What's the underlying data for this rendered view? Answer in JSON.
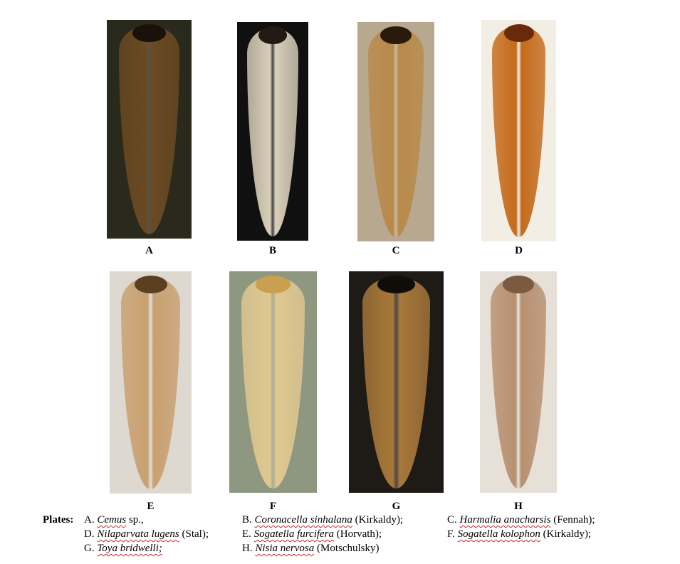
{
  "plates": [
    {
      "letter": "A",
      "bg": "#2a2a1c",
      "body": "#6b4a22",
      "head": "#1a1208"
    },
    {
      "letter": "B",
      "bg": "#101010",
      "body": "#d8cfb8",
      "head": "#241a14"
    },
    {
      "letter": "C",
      "bg": "#b8a890",
      "body": "#b88a4a",
      "head": "#2a1a0c"
    },
    {
      "letter": "D",
      "bg": "#f2eee4",
      "body": "#c56a1a",
      "head": "#6a2a0a"
    },
    {
      "letter": "E",
      "bg": "#ddd8d0",
      "body": "#c9a070",
      "head": "#5a4020"
    },
    {
      "letter": "F",
      "bg": "#8e9880",
      "body": "#e0c890",
      "head": "#c8a050"
    },
    {
      "letter": "G",
      "bg": "#1e1a16",
      "body": "#a8783a",
      "head": "#100c08"
    },
    {
      "letter": "H",
      "bg": "#e6e0d8",
      "body": "#b89070",
      "head": "#7a5a40"
    }
  ],
  "caption": {
    "heading": "Plates:",
    "items": [
      {
        "prefix": "A. ",
        "name": "Cemus",
        "suffix": " sp.,"
      },
      {
        "prefix": "B. ",
        "name": "Coronacella sinhalana",
        "suffix": " (Kirkaldy);"
      },
      {
        "prefix": "C. ",
        "name": "Harmalia anacharsis",
        "suffix": " (Fennah);"
      },
      {
        "prefix": "D. ",
        "name": "Nilaparvata lugens",
        "suffix": " (Stal);"
      },
      {
        "prefix": "E. ",
        "name": "Sogatella furcifera",
        "suffix": " (Horvath);"
      },
      {
        "prefix": "F. ",
        "name": "Sogatella kolophon",
        "suffix": " (Kirkaldy);"
      },
      {
        "prefix": "G. ",
        "name": "Toya bridwelli;",
        "suffix": ""
      },
      {
        "prefix": "H. ",
        "name": "Nisia nervosa",
        "suffix": " (Motschulsky)"
      }
    ]
  }
}
